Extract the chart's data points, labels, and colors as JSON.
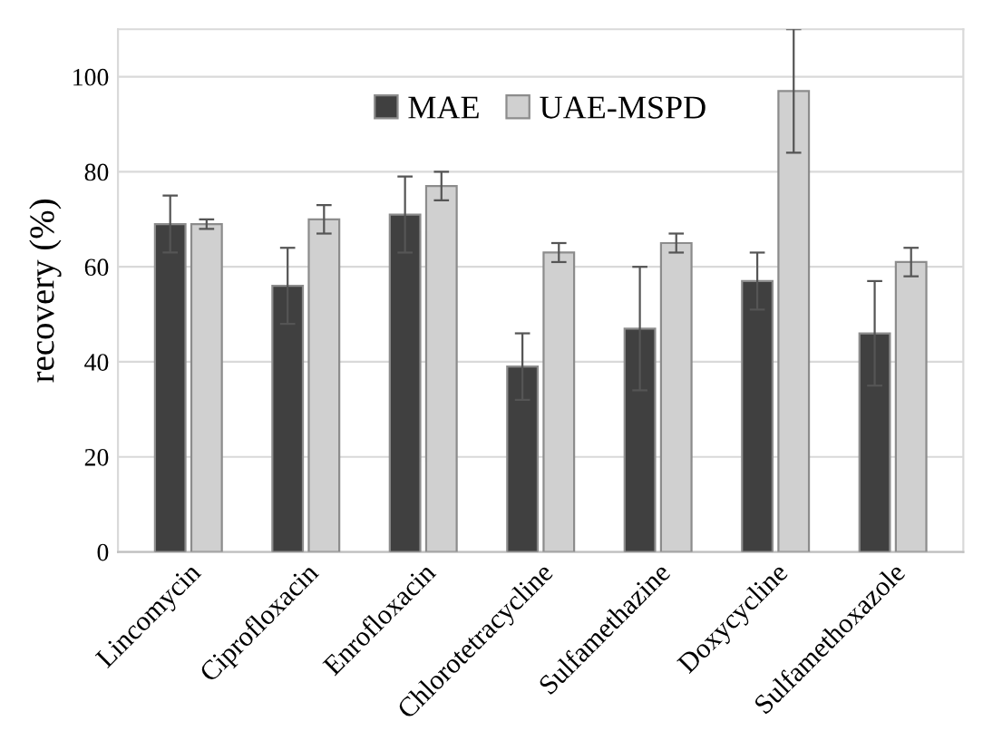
{
  "chart_data": {
    "type": "bar",
    "ylabel": "recovery (%)",
    "categories": [
      "Lincomycin",
      "Ciprofloxacin",
      "Enrofloxacin",
      "Chlorotetracycline",
      "Sulfamethazine",
      "Doxycycline",
      "Sulfamethoxazole"
    ],
    "series": [
      {
        "name": "MAE",
        "color": "#404040",
        "values": [
          69,
          56,
          71,
          39,
          47,
          57,
          46
        ],
        "errors": [
          6,
          8,
          8,
          7,
          13,
          6,
          11
        ]
      },
      {
        "name": "UAE-MSPD",
        "color": "#d0d0d0",
        "values": [
          69,
          70,
          77,
          63,
          65,
          97,
          61
        ],
        "errors": [
          1,
          3,
          3,
          2,
          2,
          13,
          3
        ]
      }
    ],
    "ylim": [
      0,
      110
    ],
    "yticks": [
      0,
      20,
      40,
      60,
      80,
      100
    ],
    "grid": "y",
    "legend": "top"
  }
}
